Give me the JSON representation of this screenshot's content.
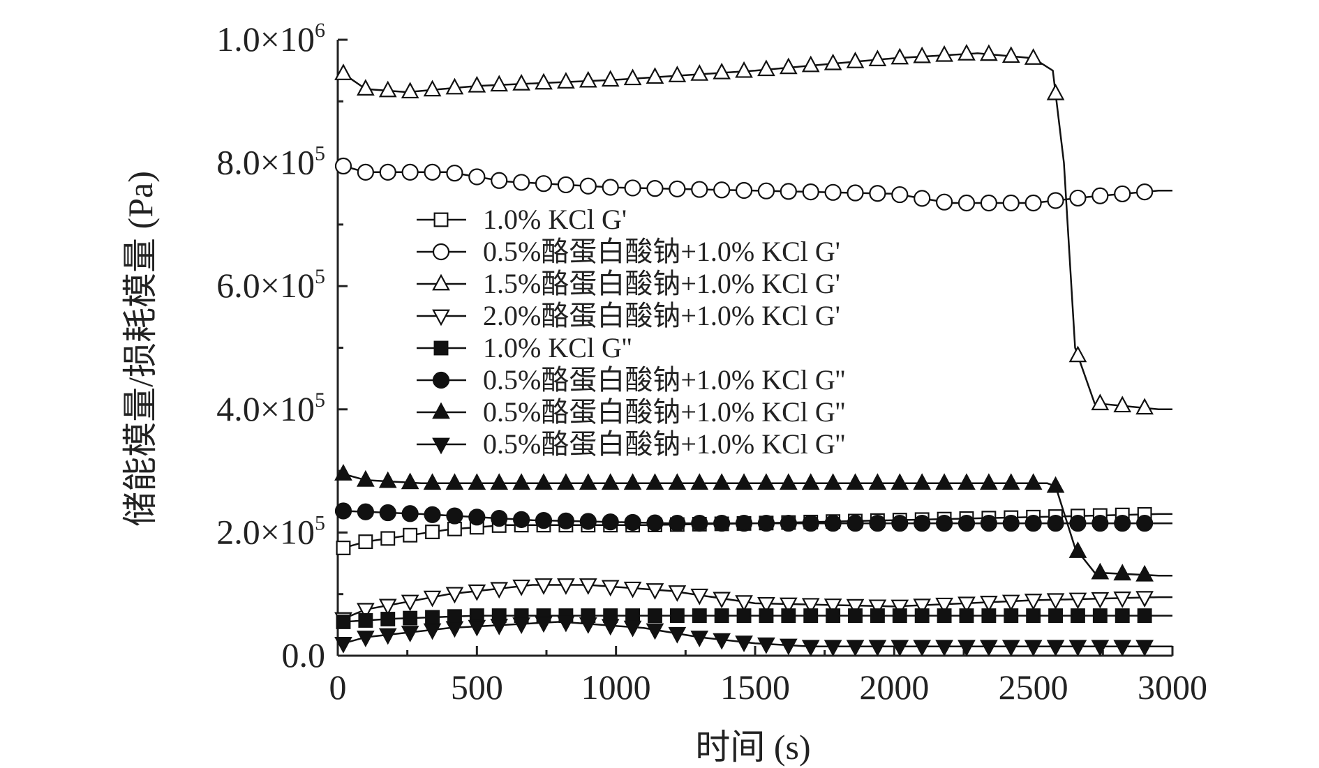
{
  "chart_data": {
    "type": "line",
    "xlabel": "时间 (s)",
    "ylabel": "储能模量/损耗模量 (Pa)",
    "xlim": [
      0,
      3000
    ],
    "ylim": [
      0,
      1000000
    ],
    "x_ticks": [
      0,
      500,
      1000,
      1500,
      2000,
      2500,
      3000
    ],
    "x_tick_labels": [
      "0",
      "500",
      "1000",
      "1500",
      "2000",
      "2500",
      "3000"
    ],
    "y_ticks": [
      0,
      200000,
      400000,
      600000,
      800000,
      1000000
    ],
    "y_tick_labels": [
      {
        "mant": "0.0",
        "exp": ""
      },
      {
        "mant": "2.0×10",
        "exp": "5"
      },
      {
        "mant": "4.0×10",
        "exp": "5"
      },
      {
        "mant": "6.0×10",
        "exp": "5"
      },
      {
        "mant": "8.0×10",
        "exp": "5"
      },
      {
        "mant": "1.0×10",
        "exp": "6"
      }
    ],
    "grid": false,
    "legend_position": "center-left",
    "marker_interval_s": 80,
    "series": [
      {
        "name": "1.0% KCl G'",
        "marker": "square",
        "filled": false,
        "points": [
          [
            20,
            175000
          ],
          [
            100,
            185000
          ],
          [
            250,
            195000
          ],
          [
            400,
            205000
          ],
          [
            600,
            212000
          ],
          [
            800,
            212000
          ],
          [
            1100,
            212000
          ],
          [
            1500,
            215000
          ],
          [
            2000,
            220000
          ],
          [
            2500,
            225000
          ],
          [
            2950,
            230000
          ]
        ]
      },
      {
        "name": "0.5%酪蛋白酸钠+1.0% KCl G'",
        "marker": "circle",
        "filled": false,
        "points": [
          [
            20,
            795000
          ],
          [
            100,
            785000
          ],
          [
            400,
            785000
          ],
          [
            600,
            770000
          ],
          [
            1000,
            760000
          ],
          [
            1500,
            755000
          ],
          [
            2000,
            750000
          ],
          [
            2200,
            735000
          ],
          [
            2500,
            735000
          ],
          [
            2700,
            745000
          ],
          [
            2950,
            755000
          ]
        ]
      },
      {
        "name": "1.5%酪蛋白酸钠+1.0% KCl G'",
        "marker": "triangle-up",
        "filled": false,
        "points": [
          [
            20,
            945000
          ],
          [
            100,
            920000
          ],
          [
            250,
            915000
          ],
          [
            500,
            925000
          ],
          [
            1000,
            935000
          ],
          [
            1500,
            950000
          ],
          [
            2000,
            970000
          ],
          [
            2300,
            978000
          ],
          [
            2500,
            970000
          ],
          [
            2570,
            950000
          ],
          [
            2610,
            800000
          ],
          [
            2650,
            500000
          ],
          [
            2720,
            410000
          ],
          [
            2950,
            400000
          ]
        ]
      },
      {
        "name": "2.0%酪蛋白酸钠+1.0% KCl G'",
        "marker": "triangle-down",
        "filled": false,
        "points": [
          [
            20,
            60000
          ],
          [
            100,
            75000
          ],
          [
            400,
            100000
          ],
          [
            700,
            115000
          ],
          [
            900,
            115000
          ],
          [
            1200,
            105000
          ],
          [
            1500,
            85000
          ],
          [
            2000,
            80000
          ],
          [
            2500,
            90000
          ],
          [
            2950,
            95000
          ]
        ]
      },
      {
        "name": "1.0% KCl G''",
        "marker": "square",
        "filled": true,
        "points": [
          [
            20,
            55000
          ],
          [
            200,
            60000
          ],
          [
            500,
            65000
          ],
          [
            2950,
            65000
          ]
        ]
      },
      {
        "name": "0.5%酪蛋白酸钠+1.0% KCl G''",
        "marker": "circle",
        "filled": true,
        "points": [
          [
            20,
            235000
          ],
          [
            300,
            230000
          ],
          [
            700,
            220000
          ],
          [
            1200,
            215000
          ],
          [
            2950,
            215000
          ]
        ]
      },
      {
        "name": "0.5%酪蛋白酸钠+1.0% KCl G''",
        "marker": "triangle-up",
        "filled": true,
        "points": [
          [
            20,
            295000
          ],
          [
            100,
            285000
          ],
          [
            300,
            280000
          ],
          [
            2550,
            280000
          ],
          [
            2580,
            275000
          ],
          [
            2650,
            175000
          ],
          [
            2720,
            135000
          ],
          [
            2950,
            130000
          ]
        ]
      },
      {
        "name": "0.5%酪蛋白酸钠+1.0% KCl G''",
        "marker": "triangle-down",
        "filled": true,
        "points": [
          [
            20,
            20000
          ],
          [
            100,
            30000
          ],
          [
            400,
            45000
          ],
          [
            800,
            55000
          ],
          [
            1100,
            45000
          ],
          [
            1300,
            30000
          ],
          [
            1500,
            20000
          ],
          [
            1700,
            15000
          ],
          [
            2950,
            15000
          ]
        ]
      }
    ]
  }
}
